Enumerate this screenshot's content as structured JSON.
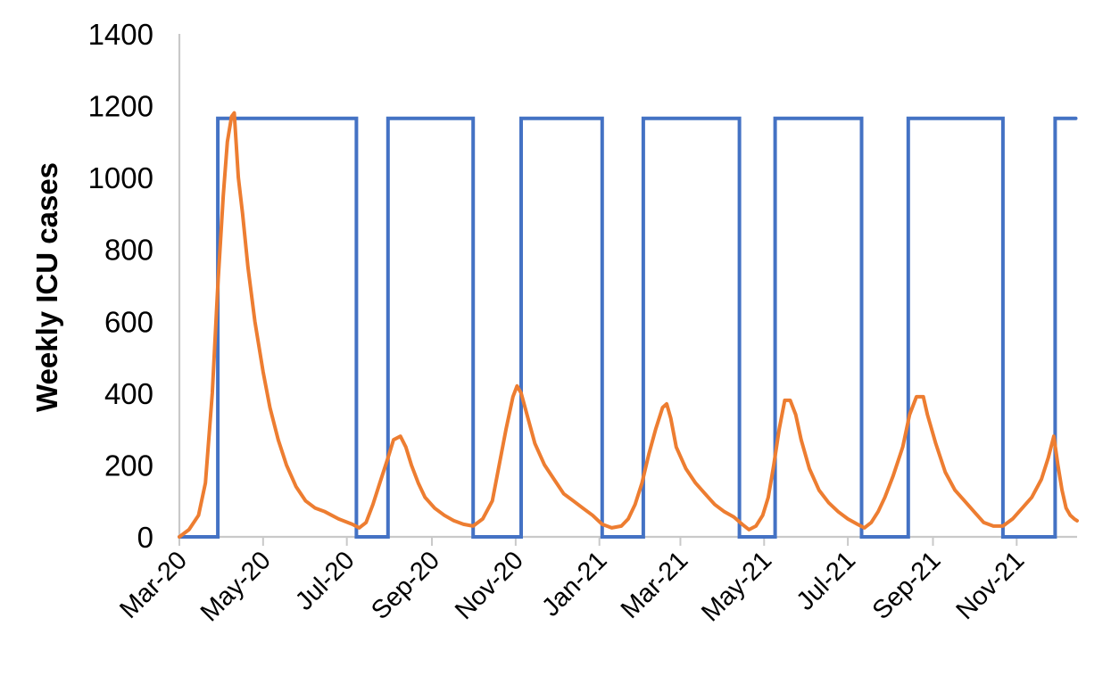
{
  "chart_data": {
    "type": "line",
    "title": "",
    "xlabel": "",
    "ylabel": "Weekly ICU cases",
    "ylim": [
      0,
      1400
    ],
    "xlim": [
      "2020-03-01",
      "2021-12-15"
    ],
    "yticks": [
      0,
      200,
      400,
      600,
      800,
      1000,
      1200,
      1400
    ],
    "xtick_labels": [
      "Mar-20",
      "May-20",
      "Jul-20",
      "Sep-20",
      "Nov-20",
      "Jan-21",
      "Mar-21",
      "May-21",
      "Jul-21",
      "Sep-21",
      "Nov-21"
    ],
    "xtick_dates": [
      "2020-03-01",
      "2020-05-01",
      "2020-07-01",
      "2020-09-01",
      "2020-11-01",
      "2021-01-01",
      "2021-03-01",
      "2021-05-01",
      "2021-07-01",
      "2021-09-01",
      "2021-11-01"
    ],
    "grid": false,
    "legend": "none",
    "series": [
      {
        "color": "#4472C4",
        "shape": "step",
        "x": [
          "2020-03-01",
          "2020-03-29",
          "2020-03-29",
          "2020-07-08",
          "2020-07-08",
          "2020-07-31",
          "2020-07-31",
          "2020-10-01",
          "2020-10-01",
          "2020-11-05",
          "2020-11-05",
          "2021-01-03",
          "2021-01-03",
          "2021-02-02",
          "2021-02-02",
          "2021-04-13",
          "2021-04-13",
          "2021-05-09",
          "2021-05-09",
          "2021-07-11",
          "2021-07-11",
          "2021-08-14",
          "2021-08-14",
          "2021-10-22",
          "2021-10-22",
          "2021-11-29",
          "2021-11-29",
          "2021-12-14"
        ],
        "y": [
          0,
          0,
          1165,
          1165,
          0,
          0,
          1165,
          1165,
          0,
          0,
          1165,
          1165,
          0,
          0,
          1165,
          1165,
          0,
          0,
          1165,
          1165,
          0,
          0,
          1165,
          1165,
          0,
          0,
          1165,
          1165
        ]
      },
      {
        "color": "#ED7D31",
        "shape": "line",
        "x": [
          "2020-03-01",
          "2020-03-08",
          "2020-03-15",
          "2020-03-20",
          "2020-03-25",
          "2020-03-29",
          "2020-04-02",
          "2020-04-05",
          "2020-04-08",
          "2020-04-10",
          "2020-04-13",
          "2020-04-16",
          "2020-04-20",
          "2020-04-25",
          "2020-05-01",
          "2020-05-06",
          "2020-05-12",
          "2020-05-18",
          "2020-05-25",
          "2020-06-01",
          "2020-06-08",
          "2020-06-15",
          "2020-06-25",
          "2020-07-05",
          "2020-07-10",
          "2020-07-15",
          "2020-07-20",
          "2020-07-25",
          "2020-07-31",
          "2020-08-04",
          "2020-08-09",
          "2020-08-13",
          "2020-08-17",
          "2020-08-22",
          "2020-08-27",
          "2020-09-03",
          "2020-09-10",
          "2020-09-17",
          "2020-09-24",
          "2020-10-01",
          "2020-10-08",
          "2020-10-15",
          "2020-10-20",
          "2020-10-25",
          "2020-10-30",
          "2020-11-02",
          "2020-11-05",
          "2020-11-10",
          "2020-11-15",
          "2020-11-22",
          "2020-11-29",
          "2020-12-06",
          "2020-12-13",
          "2020-12-20",
          "2020-12-27",
          "2021-01-03",
          "2021-01-10",
          "2021-01-17",
          "2021-01-22",
          "2021-01-27",
          "2021-02-01",
          "2021-02-06",
          "2021-02-11",
          "2021-02-16",
          "2021-02-19",
          "2021-02-22",
          "2021-02-26",
          "2021-03-05",
          "2021-03-12",
          "2021-03-19",
          "2021-03-26",
          "2021-04-02",
          "2021-04-09",
          "2021-04-15",
          "2021-04-20",
          "2021-04-25",
          "2021-04-30",
          "2021-05-04",
          "2021-05-08",
          "2021-05-12",
          "2021-05-16",
          "2021-05-20",
          "2021-05-24",
          "2021-05-28",
          "2021-06-03",
          "2021-06-10",
          "2021-06-17",
          "2021-06-24",
          "2021-07-01",
          "2021-07-08",
          "2021-07-13",
          "2021-07-18",
          "2021-07-23",
          "2021-07-28",
          "2021-08-03",
          "2021-08-10",
          "2021-08-15",
          "2021-08-20",
          "2021-08-25",
          "2021-08-28",
          "2021-09-03",
          "2021-09-10",
          "2021-09-17",
          "2021-09-24",
          "2021-10-01",
          "2021-10-08",
          "2021-10-15",
          "2021-10-22",
          "2021-10-29",
          "2021-11-05",
          "2021-11-12",
          "2021-11-19",
          "2021-11-24",
          "2021-11-28",
          "2021-12-01",
          "2021-12-04",
          "2021-12-07",
          "2021-12-10",
          "2021-12-13",
          "2021-12-15"
        ],
        "y": [
          0,
          20,
          60,
          150,
          400,
          700,
          950,
          1100,
          1170,
          1180,
          1000,
          900,
          750,
          600,
          460,
          360,
          270,
          200,
          140,
          100,
          80,
          70,
          50,
          35,
          25,
          40,
          90,
          150,
          220,
          270,
          280,
          250,
          200,
          150,
          110,
          80,
          60,
          45,
          35,
          30,
          50,
          100,
          200,
          300,
          390,
          420,
          400,
          330,
          260,
          200,
          160,
          120,
          100,
          80,
          60,
          35,
          25,
          30,
          50,
          90,
          150,
          230,
          300,
          360,
          370,
          330,
          250,
          190,
          150,
          120,
          90,
          70,
          55,
          35,
          20,
          30,
          60,
          110,
          200,
          300,
          380,
          380,
          340,
          270,
          190,
          130,
          95,
          70,
          50,
          35,
          25,
          40,
          70,
          110,
          170,
          250,
          340,
          390,
          390,
          340,
          260,
          180,
          130,
          100,
          70,
          40,
          30,
          30,
          50,
          80,
          110,
          160,
          220,
          280,
          200,
          130,
          80,
          60,
          50,
          45
        ]
      }
    ]
  }
}
